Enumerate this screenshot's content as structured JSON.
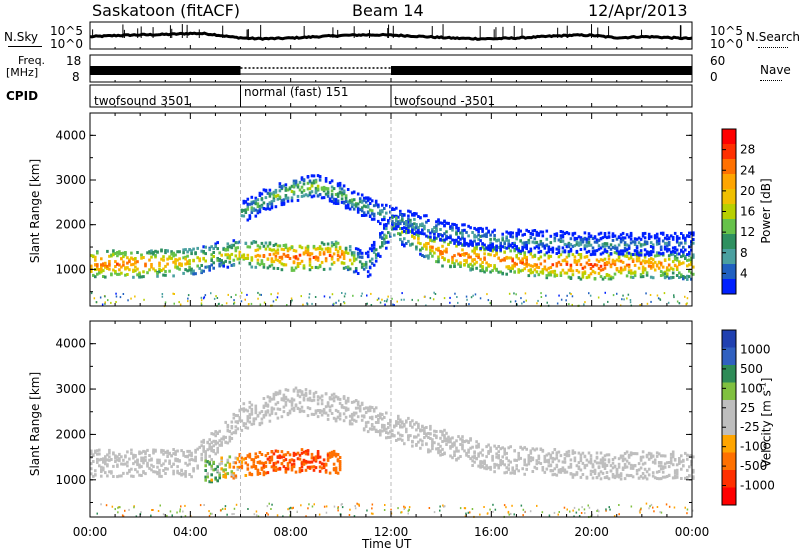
{
  "header": {
    "station": "Saskatoon (fitACF)",
    "beam": "Beam 14",
    "date": "12/Apr/2013"
  },
  "top_panels": {
    "nsky_label": "N.Sky",
    "nsearch_label": "N.Search",
    "nsky_ticks": [
      "10^5",
      "10^0"
    ],
    "freq_label_1": "Freq.",
    "freq_label_2": "[MHz]",
    "freq_ticks": [
      "18",
      "8"
    ],
    "nave_ticks": [
      "60",
      "0"
    ],
    "nave_label": "Nave",
    "cpid_label": "CPID",
    "cpid_segments": [
      {
        "name": "twofsound 3501",
        "start_h": 0,
        "end_h": 6
      },
      {
        "name": "normal (fast) 151",
        "start_h": 6,
        "end_h": 12
      },
      {
        "name": "twofsound -3501",
        "start_h": 12,
        "end_h": 24
      }
    ]
  },
  "power_colorbar": {
    "label": "Power [dB]",
    "ticks": [
      "28",
      "24",
      "20",
      "16",
      "12",
      "8",
      "4"
    ],
    "colors": [
      "#ff0000",
      "#ff3000",
      "#ff7000",
      "#ffa500",
      "#f0c000",
      "#b8d000",
      "#66c24a",
      "#2e9060",
      "#4aa0a0",
      "#2060c0",
      "#0020ff"
    ]
  },
  "velocity_colorbar": {
    "label": "Velocity [m s",
    "label_sup": "-1",
    "label_close": "]",
    "ticks": [
      "1000",
      "500",
      "100",
      "25",
      "-25",
      "-100",
      "-500",
      "-1000"
    ],
    "colors": [
      "#2040b0",
      "#3060c0",
      "#2e8b57",
      "#80c040",
      "#bebebe",
      "#bebebe",
      "#ffa500",
      "#ff7000",
      "#ff3000",
      "#ff0000"
    ]
  },
  "chart_data": [
    {
      "type": "heatmap",
      "title": "Power",
      "ylabel": "Slant Range [km]",
      "xlabel": "Time UT",
      "x_ticks": [
        "00:00",
        "04:00",
        "08:00",
        "12:00",
        "16:00",
        "20:00",
        "00:00"
      ],
      "xlim_hours": [
        0,
        24
      ],
      "y_ticks": [
        "4000",
        "3000",
        "2000",
        "1000"
      ],
      "ylim_km": [
        180,
        4500
      ],
      "series": [
        {
          "name": "main echo band",
          "hours": [
            0,
            2,
            4,
            5,
            6,
            8,
            10,
            11,
            12,
            14,
            16,
            18,
            20,
            22,
            24
          ],
          "range_km": [
            1150,
            1150,
            1200,
            1350,
            1400,
            1300,
            1350,
            1100,
            2000,
            1400,
            1250,
            1150,
            1100,
            1150,
            1100
          ],
          "power_db": [
            24,
            24,
            20,
            16,
            20,
            26,
            24,
            10,
            14,
            24,
            24,
            24,
            26,
            24,
            20
          ]
        },
        {
          "name": "upper echo band",
          "hours": [
            6,
            7,
            8,
            9,
            10,
            11,
            12,
            14,
            16,
            20,
            24
          ],
          "range_km": [
            2300,
            2600,
            2800,
            2900,
            2700,
            2400,
            2200,
            1900,
            1700,
            1600,
            1600
          ],
          "power_db": [
            12,
            14,
            16,
            16,
            14,
            12,
            12,
            10,
            10,
            10,
            8
          ]
        }
      ]
    },
    {
      "type": "heatmap",
      "title": "Velocity",
      "ylabel": "Slant Range [km]",
      "xlabel": "Time UT",
      "x_ticks": [
        "00:00",
        "04:00",
        "08:00",
        "12:00",
        "16:00",
        "20:00",
        "00:00"
      ],
      "xlim_hours": [
        0,
        24
      ],
      "y_ticks": [
        "4000",
        "3000",
        "2000",
        "1000"
      ],
      "ylim_km": [
        180,
        4500
      ],
      "series": [
        {
          "name": "ground scatter band",
          "hours": [
            0,
            4,
            6,
            8,
            10,
            12,
            16,
            20,
            24
          ],
          "range_km": [
            1400,
            1400,
            2400,
            2800,
            2600,
            2200,
            1500,
            1350,
            1350
          ],
          "velocity_ms": [
            0,
            0,
            0,
            0,
            0,
            0,
            0,
            0,
            0
          ]
        },
        {
          "name": "ionospheric scatter",
          "hours": [
            4.5,
            6,
            7,
            8,
            9,
            10
          ],
          "range_km": [
            1200,
            1350,
            1400,
            1450,
            1450,
            1400
          ],
          "velocity_ms": [
            100,
            -100,
            -500,
            -500,
            -500,
            -300
          ]
        }
      ]
    }
  ]
}
